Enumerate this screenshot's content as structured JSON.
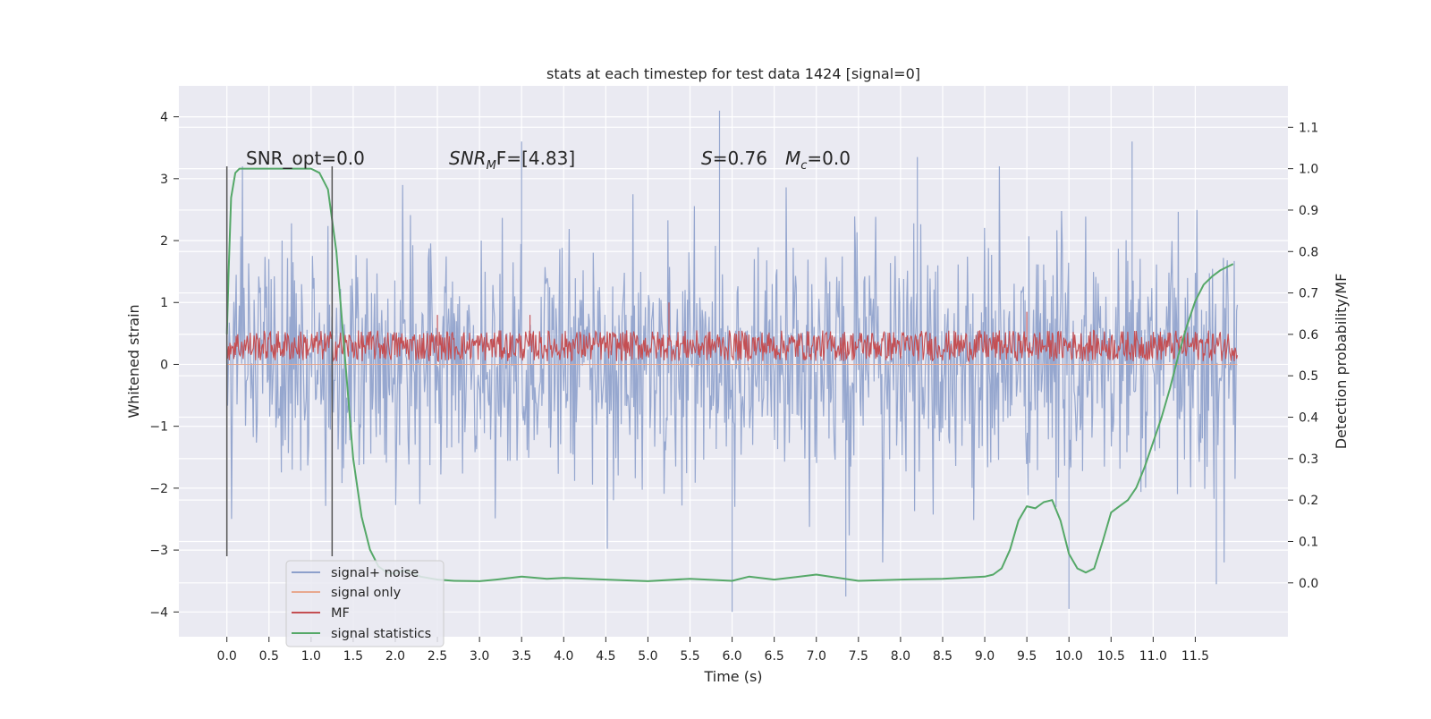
{
  "chart_data": {
    "type": "line",
    "title": "stats at each timestep for test data 1424 [signal=0]",
    "xlabel": "Time (s)",
    "ylabel": "Whitened strain",
    "y2label": "Detection probability/MF",
    "xlim": [
      -0.57,
      12.6
    ],
    "ylim": [
      -4.4,
      4.5
    ],
    "y2lim": [
      -0.13,
      1.2
    ],
    "x_ticks": [
      "0.0",
      "0.5",
      "1.0",
      "1.5",
      "2.0",
      "2.5",
      "3.0",
      "3.5",
      "4.0",
      "4.5",
      "5.0",
      "5.5",
      "6.0",
      "6.5",
      "7.0",
      "7.5",
      "8.0",
      "8.5",
      "9.0",
      "9.5",
      "10.0",
      "10.5",
      "11.0",
      "11.5"
    ],
    "y_ticks": [
      "4",
      "3",
      "2",
      "1",
      "0",
      "−1",
      "−2",
      "−3",
      "−4"
    ],
    "y2_ticks": [
      "1.1",
      "1.0",
      "0.9",
      "0.8",
      "0.7",
      "0.6",
      "0.5",
      "0.4",
      "0.3",
      "0.2",
      "0.1",
      "0.0"
    ],
    "grid": true,
    "legend_position": "lower-left",
    "annotations": {
      "snr_opt": "SNR_opt=0.0",
      "snr_mf_prefix": "SNR",
      "snr_mf_sub": "M",
      "snr_mf_rest": "F=[4.83]",
      "s_label": "S",
      "s_value": "=0.76",
      "mc_label": "M",
      "mc_sub": "c",
      "mc_value": "=0.0"
    },
    "vlines": [
      0.0,
      1.25
    ],
    "series": [
      {
        "name": "signal+ noise",
        "color": "#8da0cb",
        "axis": "left",
        "x_range": [
          0.0,
          12.0
        ],
        "envelope_typical": [
          -2.0,
          2.0
        ],
        "notable_peaks": [
          [
            5.85,
            4.1
          ],
          [
            10.75,
            3.6
          ],
          [
            8.2,
            3.35
          ],
          [
            3.5,
            3.6
          ],
          [
            6.0,
            -4.0
          ],
          [
            10.0,
            -3.95
          ],
          [
            11.75,
            -3.55
          ],
          [
            7.35,
            -3.75
          ]
        ]
      },
      {
        "name": "signal only",
        "color": "#e8a88f",
        "axis": "left",
        "x_range": [
          0.0,
          12.0
        ],
        "values_constant": 0.0
      },
      {
        "name": "MF",
        "color": "#c44e52",
        "axis": "left",
        "x_range": [
          0.0,
          12.0
        ],
        "band": [
          0.05,
          0.55
        ],
        "notable_peaks": [
          [
            5.25,
            1.0
          ],
          [
            3.6,
            0.8
          ],
          [
            9.5,
            0.85
          ],
          [
            2.5,
            0.8
          ]
        ]
      },
      {
        "name": "signal statistics",
        "color": "#55a868",
        "axis": "right",
        "x": [
          0.0,
          0.02,
          0.05,
          0.1,
          0.15,
          0.25,
          0.5,
          0.8,
          1.0,
          1.1,
          1.2,
          1.3,
          1.4,
          1.5,
          1.6,
          1.7,
          1.8,
          1.9,
          2.0,
          2.1,
          2.2,
          2.3,
          2.5,
          2.7,
          3.0,
          3.2,
          3.5,
          3.8,
          4.0,
          4.5,
          5.0,
          5.5,
          6.0,
          6.2,
          6.5,
          7.0,
          7.5,
          8.0,
          8.5,
          9.0,
          9.1,
          9.2,
          9.3,
          9.4,
          9.5,
          9.6,
          9.7,
          9.8,
          9.9,
          10.0,
          10.1,
          10.2,
          10.3,
          10.4,
          10.5,
          10.6,
          10.7,
          10.8,
          10.9,
          11.0,
          11.1,
          11.2,
          11.3,
          11.4,
          11.5,
          11.6,
          11.7,
          11.8,
          11.9,
          11.95
        ],
        "values": [
          0.6,
          0.75,
          0.93,
          0.99,
          1.0,
          1.0,
          1.0,
          1.0,
          1.0,
          0.99,
          0.95,
          0.8,
          0.55,
          0.3,
          0.16,
          0.08,
          0.04,
          0.025,
          0.022,
          0.03,
          0.025,
          0.015,
          0.008,
          0.005,
          0.004,
          0.008,
          0.015,
          0.01,
          0.012,
          0.008,
          0.004,
          0.01,
          0.005,
          0.015,
          0.008,
          0.02,
          0.005,
          0.008,
          0.01,
          0.015,
          0.02,
          0.035,
          0.08,
          0.15,
          0.185,
          0.18,
          0.195,
          0.2,
          0.15,
          0.07,
          0.035,
          0.025,
          0.035,
          0.1,
          0.17,
          0.185,
          0.2,
          0.23,
          0.28,
          0.34,
          0.4,
          0.47,
          0.55,
          0.62,
          0.68,
          0.72,
          0.74,
          0.755,
          0.765,
          0.77
        ]
      }
    ]
  }
}
